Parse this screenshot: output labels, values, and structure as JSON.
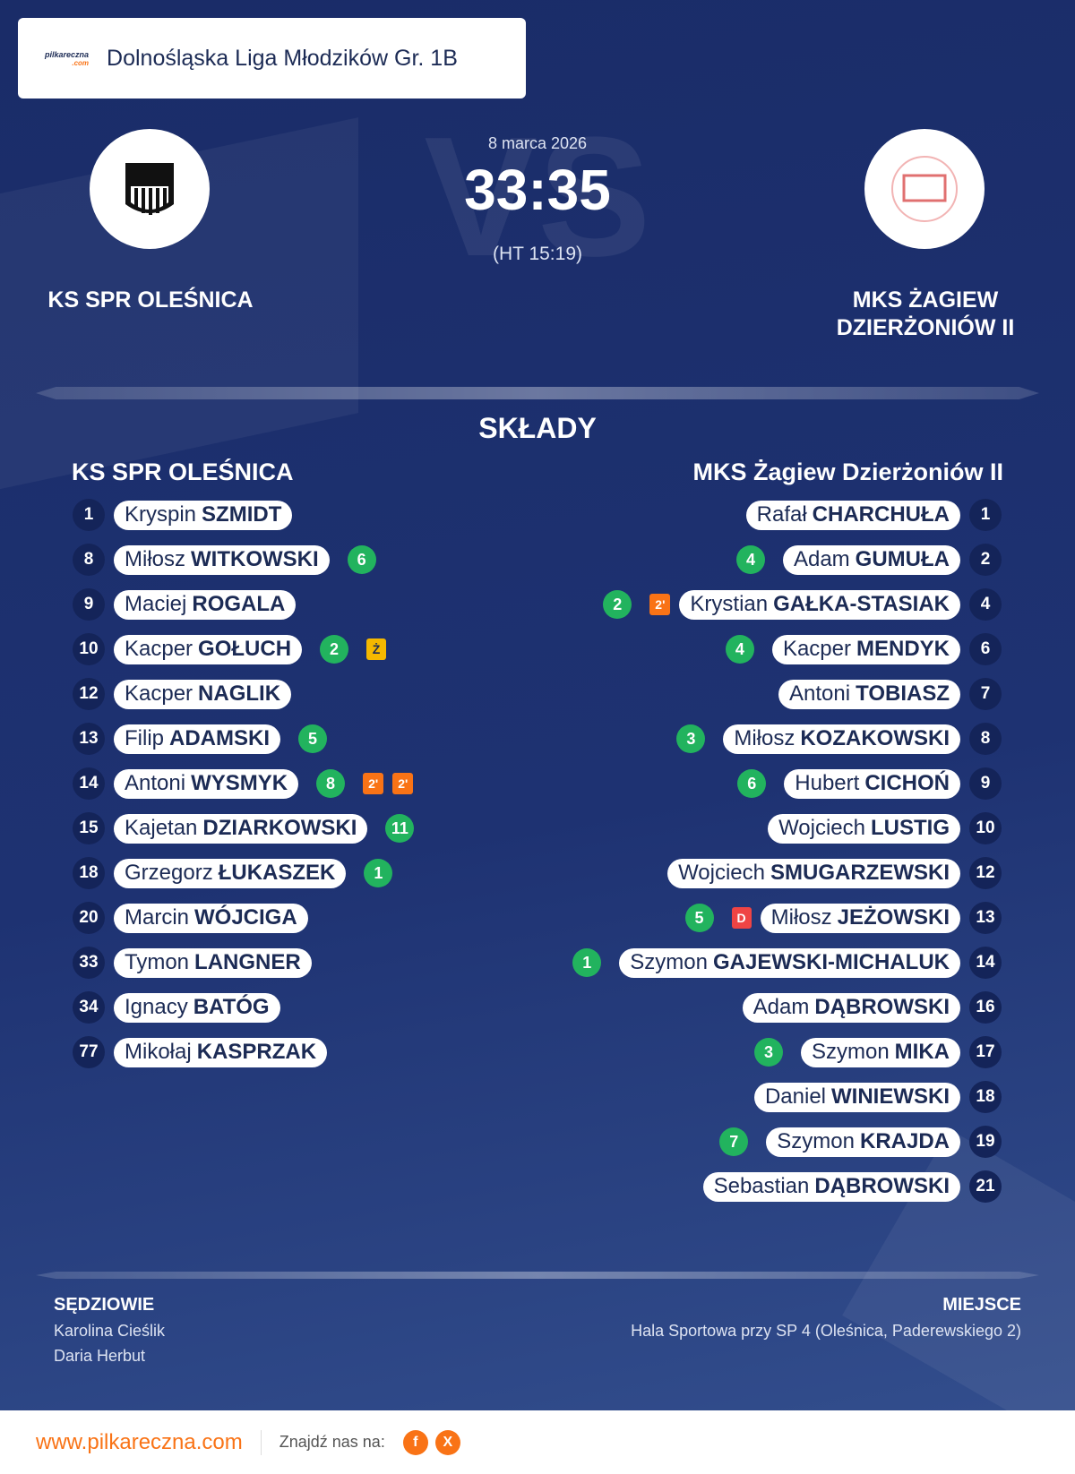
{
  "header": {
    "logo_text": "pilkareczna",
    "logo_sub": ".com",
    "league": "Dolnośląska Liga Młodzików Gr. 1B"
  },
  "match": {
    "date": "8 marca 2026",
    "score": "33:35",
    "halftime": "(HT 15:19)",
    "watermark": "VS",
    "home_team": "KS SPR OLEŚNICA",
    "away_team": "MKS ŻAGIEW DZIERŻONIÓW II"
  },
  "lineups": {
    "title": "SKŁADY",
    "home": {
      "title": "KS SPR OLEŚNICA",
      "players": [
        {
          "number": 1,
          "first": "Kryspin",
          "last": "SZMIDT",
          "goals": null,
          "cards": []
        },
        {
          "number": 8,
          "first": "Miłosz",
          "last": "WITKOWSKI",
          "goals": 6,
          "cards": []
        },
        {
          "number": 9,
          "first": "Maciej",
          "last": "ROGALA",
          "goals": null,
          "cards": []
        },
        {
          "number": 10,
          "first": "Kacper",
          "last": "GOŁUCH",
          "goals": 2,
          "cards": [
            {
              "label": "Ż",
              "color": "#f5b800"
            }
          ]
        },
        {
          "number": 12,
          "first": "Kacper",
          "last": "NAGLIK",
          "goals": null,
          "cards": []
        },
        {
          "number": 13,
          "first": "Filip",
          "last": "ADAMSKI",
          "goals": 5,
          "cards": []
        },
        {
          "number": 14,
          "first": "Antoni",
          "last": "WYSMYK",
          "goals": 8,
          "cards": [
            {
              "label": "2'",
              "color": "#f97316"
            },
            {
              "label": "2'",
              "color": "#f97316"
            }
          ]
        },
        {
          "number": 15,
          "first": "Kajetan",
          "last": "DZIARKOWSKI",
          "goals": 11,
          "cards": []
        },
        {
          "number": 18,
          "first": "Grzegorz",
          "last": "ŁUKASZEK",
          "goals": 1,
          "cards": []
        },
        {
          "number": 20,
          "first": "Marcin",
          "last": "WÓJCIGA",
          "goals": null,
          "cards": []
        },
        {
          "number": 33,
          "first": "Tymon",
          "last": "LANGNER",
          "goals": null,
          "cards": []
        },
        {
          "number": 34,
          "first": "Ignacy",
          "last": "BATÓG",
          "goals": null,
          "cards": []
        },
        {
          "number": 77,
          "first": "Mikołaj",
          "last": "KASPRZAK",
          "goals": null,
          "cards": []
        }
      ]
    },
    "away": {
      "title": "MKS Żagiew Dzierżoniów II",
      "players": [
        {
          "number": 1,
          "first": "Rafał",
          "last": "CHARCHUŁA",
          "goals": null,
          "cards": []
        },
        {
          "number": 2,
          "first": "Adam",
          "last": "GUMUŁA",
          "goals": 4,
          "cards": []
        },
        {
          "number": 4,
          "first": "Krystian",
          "last": "GAŁKA-STASIAK",
          "goals": 2,
          "cards": [
            {
              "label": "2'",
              "color": "#f97316"
            }
          ]
        },
        {
          "number": 6,
          "first": "Kacper",
          "last": "MENDYK",
          "goals": 4,
          "cards": []
        },
        {
          "number": 7,
          "first": "Antoni",
          "last": "TOBIASZ",
          "goals": null,
          "cards": []
        },
        {
          "number": 8,
          "first": "Miłosz",
          "last": "KOZAKOWSKI",
          "goals": 3,
          "cards": []
        },
        {
          "number": 9,
          "first": "Hubert",
          "last": "CICHOŃ",
          "goals": 6,
          "cards": []
        },
        {
          "number": 10,
          "first": "Wojciech",
          "last": "LUSTIG",
          "goals": null,
          "cards": []
        },
        {
          "number": 12,
          "first": "Wojciech",
          "last": "SMUGARZEWSKI",
          "goals": null,
          "cards": []
        },
        {
          "number": 13,
          "first": "Miłosz",
          "last": "JEŻOWSKI",
          "goals": 5,
          "cards": [
            {
              "label": "D",
              "color": "#ef4444"
            }
          ]
        },
        {
          "number": 14,
          "first": "Szymon",
          "last": "GAJEWSKI-MICHALUK",
          "goals": 1,
          "cards": []
        },
        {
          "number": 16,
          "first": "Adam",
          "last": "DĄBROWSKI",
          "goals": null,
          "cards": []
        },
        {
          "number": 17,
          "first": "Szymon",
          "last": "MIKA",
          "goals": 3,
          "cards": []
        },
        {
          "number": 18,
          "first": "Daniel",
          "last": "WINIEWSKI",
          "goals": null,
          "cards": []
        },
        {
          "number": 19,
          "first": "Szymon",
          "last": "KRAJDA",
          "goals": 7,
          "cards": []
        },
        {
          "number": 21,
          "first": "Sebastian",
          "last": "DĄBROWSKI",
          "goals": null,
          "cards": []
        }
      ]
    }
  },
  "officials": {
    "referees_label": "SĘDZIOWIE",
    "referees": [
      "Karolina Cieślik",
      "Daria Herbut"
    ],
    "venue_label": "MIEJSCE",
    "venue": "Hala Sportowa przy SP 4 (Oleśnica, Paderewskiego 2)"
  },
  "footer": {
    "website": "www.pilkareczna.com",
    "social_label": "Znajdź nas na:",
    "social": [
      "f",
      "X"
    ]
  }
}
